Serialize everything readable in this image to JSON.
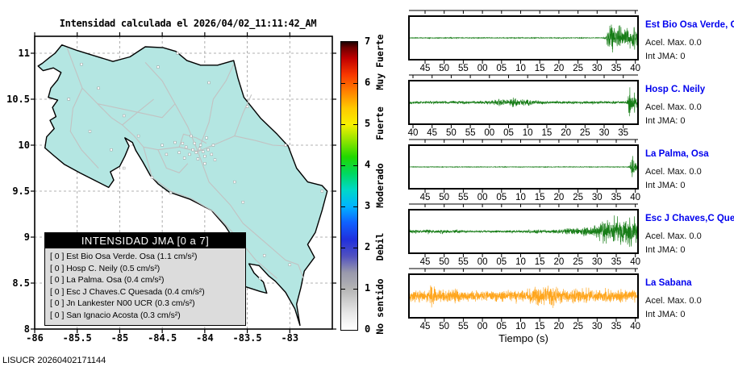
{
  "title": "Intensidad calculada el 2026/04/02_11:11:42_AM",
  "footer": "LISUCR 20260402171144",
  "map": {
    "x_ticks": [
      "-86",
      "-85.5",
      "-85",
      "-84.5",
      "-84",
      "-83.5",
      "-83"
    ],
    "y_ticks": [
      "11",
      "10.5",
      "10",
      "9.5",
      "9",
      "8.5",
      "8"
    ],
    "lon_min": -86,
    "lon_max": -82.5,
    "lat_min": 8,
    "lat_max": 11.184,
    "land_color": "#b4e6e2",
    "coast_color": "#000000",
    "road_color": "#c2c2c2",
    "grid_color": "#999999",
    "station_marker_color": "#ffffff",
    "legend": {
      "title": "INTENSIDAD JMA [0 a 7]",
      "rows": [
        "[ 0 ]  Est Bio Osa Verde. Osa (1.1 cm/s²)",
        "[ 0 ]  Hosp C. Neily (0.5 cm/s²)",
        "[ 0 ]  La Palma. Osa (0.4 cm/s²)",
        "[ 0 ]  Esc J Chaves.C Quesada (0.4 cm/s²)",
        "[ 0 ]  Jn Lankester N00 UCR (0.3 cm/s²)",
        "[ 0 ]  San Ignacio Acosta (0.3 cm/s²)"
      ]
    },
    "outline": [
      [
        -85.68,
        11.09
      ],
      [
        -85.76,
        11.0
      ],
      [
        -85.83,
        10.95
      ],
      [
        -85.91,
        10.89
      ],
      [
        -85.96,
        10.86
      ],
      [
        -85.9,
        10.81
      ],
      [
        -85.78,
        10.84
      ],
      [
        -85.69,
        10.79
      ],
      [
        -85.73,
        10.71
      ],
      [
        -85.81,
        10.62
      ],
      [
        -85.84,
        10.52
      ],
      [
        -85.73,
        10.49
      ],
      [
        -85.79,
        10.41
      ],
      [
        -85.75,
        10.31
      ],
      [
        -85.82,
        10.27
      ],
      [
        -85.77,
        10.18
      ],
      [
        -85.86,
        10.09
      ],
      [
        -85.88,
        9.97
      ],
      [
        -85.78,
        9.89
      ],
      [
        -85.65,
        9.79
      ],
      [
        -85.47,
        9.7
      ],
      [
        -85.28,
        9.61
      ],
      [
        -85.13,
        9.54
      ],
      [
        -85.07,
        9.62
      ],
      [
        -85.11,
        9.71
      ],
      [
        -85.0,
        9.77
      ],
      [
        -84.94,
        9.88
      ],
      [
        -84.89,
        9.99
      ],
      [
        -84.94,
        10.08
      ],
      [
        -84.85,
        10.03
      ],
      [
        -84.81,
        9.94
      ],
      [
        -84.73,
        9.82
      ],
      [
        -84.64,
        9.67
      ],
      [
        -84.55,
        9.58
      ],
      [
        -84.42,
        9.49
      ],
      [
        -84.17,
        9.41
      ],
      [
        -83.92,
        9.29
      ],
      [
        -83.76,
        9.12
      ],
      [
        -83.66,
        8.98
      ],
      [
        -83.73,
        8.78
      ],
      [
        -83.66,
        8.62
      ],
      [
        -83.52,
        8.46
      ],
      [
        -83.35,
        8.41
      ],
      [
        -83.27,
        8.39
      ],
      [
        -83.31,
        8.51
      ],
      [
        -83.42,
        8.61
      ],
      [
        -83.48,
        8.71
      ],
      [
        -83.36,
        8.69
      ],
      [
        -83.25,
        8.58
      ],
      [
        -83.17,
        8.52
      ],
      [
        -83.05,
        8.4
      ],
      [
        -82.94,
        8.22
      ],
      [
        -82.88,
        8.04
      ],
      [
        -82.92,
        8.27
      ],
      [
        -82.87,
        8.45
      ],
      [
        -82.83,
        8.63
      ],
      [
        -82.71,
        8.78
      ],
      [
        -82.79,
        8.92
      ],
      [
        -82.7,
        9.05
      ],
      [
        -82.62,
        9.29
      ],
      [
        -82.56,
        9.5
      ],
      [
        -82.62,
        9.56
      ],
      [
        -82.79,
        9.6
      ],
      [
        -82.92,
        9.75
      ],
      [
        -83.02,
        9.99
      ],
      [
        -83.15,
        10.12
      ],
      [
        -83.34,
        10.29
      ],
      [
        -83.54,
        10.52
      ],
      [
        -83.61,
        10.73
      ],
      [
        -83.66,
        10.92
      ],
      [
        -83.85,
        10.87
      ],
      [
        -84.05,
        10.87
      ],
      [
        -84.21,
        10.92
      ],
      [
        -84.34,
        11.02
      ],
      [
        -84.49,
        11.06
      ],
      [
        -84.7,
        11.07
      ],
      [
        -84.88,
        10.96
      ],
      [
        -85.08,
        10.91
      ],
      [
        -85.29,
        10.97
      ],
      [
        -85.5,
        11.03
      ],
      [
        -85.68,
        11.09
      ]
    ],
    "roads": [
      [
        [
          -85.62,
          11.06
        ],
        [
          -85.44,
          10.62
        ],
        [
          -85.26,
          10.45
        ],
        [
          -85.1,
          10.3
        ],
        [
          -84.97,
          10.22
        ],
        [
          -84.83,
          10.1
        ],
        [
          -84.72,
          9.98
        ],
        [
          -84.55,
          9.95
        ],
        [
          -84.3,
          9.98
        ],
        [
          -84.08,
          9.93
        ]
      ],
      [
        [
          -84.08,
          9.93
        ],
        [
          -83.9,
          10.0
        ],
        [
          -83.65,
          10.1
        ],
        [
          -83.4,
          10.05
        ],
        [
          -83.2,
          10.0
        ],
        [
          -83.03,
          9.99
        ]
      ],
      [
        [
          -84.08,
          9.93
        ],
        [
          -83.95,
          9.6
        ],
        [
          -83.7,
          9.35
        ],
        [
          -83.55,
          9.15
        ],
        [
          -83.3,
          8.95
        ],
        [
          -83.05,
          8.75
        ],
        [
          -82.9,
          8.7
        ],
        [
          -82.84,
          8.55
        ]
      ],
      [
        [
          -84.72,
          9.98
        ],
        [
          -84.62,
          9.65
        ],
        [
          -84.4,
          9.5
        ],
        [
          -84.16,
          9.42
        ],
        [
          -83.9,
          9.28
        ],
        [
          -83.62,
          9.0
        ],
        [
          -83.4,
          8.75
        ],
        [
          -83.15,
          8.55
        ]
      ],
      [
        [
          -84.08,
          9.93
        ],
        [
          -84.2,
          10.2
        ],
        [
          -84.35,
          10.45
        ],
        [
          -84.5,
          10.7
        ],
        [
          -84.7,
          10.9
        ]
      ],
      [
        [
          -84.08,
          9.93
        ],
        [
          -83.95,
          10.25
        ],
        [
          -83.9,
          10.5
        ],
        [
          -83.75,
          10.7
        ],
        [
          -83.66,
          10.88
        ]
      ],
      [
        [
          -85.44,
          10.62
        ],
        [
          -85.55,
          10.4
        ],
        [
          -85.58,
          10.15
        ],
        [
          -85.45,
          9.95
        ],
        [
          -85.25,
          9.75
        ]
      ],
      [
        [
          -85.26,
          10.45
        ],
        [
          -85.0,
          10.4
        ],
        [
          -84.75,
          10.35
        ],
        [
          -84.5,
          10.3
        ],
        [
          -84.35,
          10.45
        ]
      ],
      [
        [
          -84.3,
          9.98
        ],
        [
          -84.25,
          10.12
        ],
        [
          -84.1,
          10.08
        ],
        [
          -83.98,
          10.02
        ]
      ],
      [
        [
          -84.55,
          9.95
        ],
        [
          -84.45,
          9.75
        ],
        [
          -84.3,
          9.7
        ],
        [
          -84.2,
          9.8
        ]
      ],
      [
        [
          -83.65,
          10.1
        ],
        [
          -83.55,
          10.35
        ],
        [
          -83.45,
          10.55
        ]
      ],
      [
        [
          -84.97,
          10.22
        ],
        [
          -84.8,
          10.35
        ],
        [
          -84.6,
          10.5
        ]
      ]
    ],
    "stations": [
      [
        -84.02,
        9.93
      ],
      [
        -84.06,
        9.96
      ],
      [
        -84.1,
        9.92
      ],
      [
        -84.14,
        9.95
      ],
      [
        -84.18,
        9.9
      ],
      [
        -84.0,
        9.88
      ],
      [
        -83.96,
        9.95
      ],
      [
        -84.05,
        10.0
      ],
      [
        -84.12,
        10.02
      ],
      [
        -84.22,
        9.98
      ],
      [
        -84.26,
        10.02
      ],
      [
        -84.08,
        9.85
      ],
      [
        -83.92,
        9.9
      ],
      [
        -83.88,
        9.84
      ],
      [
        -84.3,
        9.92
      ],
      [
        -84.35,
        10.03
      ],
      [
        -83.98,
        10.08
      ],
      [
        -84.16,
        10.1
      ],
      [
        -84.45,
        9.9
      ],
      [
        -84.5,
        10.0
      ],
      [
        -83.9,
        10.0
      ],
      [
        -84.0,
        9.8
      ],
      [
        -84.24,
        9.86
      ],
      [
        -85.45,
        10.88
      ],
      [
        -85.25,
        10.62
      ],
      [
        -84.95,
        10.32
      ],
      [
        -84.55,
        10.85
      ],
      [
        -84.32,
        11.0
      ],
      [
        -83.95,
        10.68
      ],
      [
        -83.5,
        10.42
      ],
      [
        -83.05,
        10.0
      ],
      [
        -83.65,
        9.6
      ],
      [
        -83.55,
        9.38
      ],
      [
        -83.3,
        8.8
      ],
      [
        -83.0,
        8.7
      ],
      [
        -83.35,
        8.55
      ],
      [
        -84.4,
        9.48
      ],
      [
        -84.62,
        9.65
      ],
      [
        -85.1,
        9.95
      ],
      [
        -85.35,
        10.15
      ],
      [
        -84.78,
        10.1
      ],
      [
        -82.62,
        9.5
      ],
      [
        -83.72,
        8.95
      ],
      [
        -84.95,
        9.75
      ],
      [
        -85.6,
        10.5
      ]
    ]
  },
  "colorbar": {
    "numbers": [
      "0",
      "1",
      "2",
      "3",
      "4",
      "5",
      "6",
      "7"
    ],
    "words": [
      {
        "text": "Muy Fuerte",
        "center_v": 6.5
      },
      {
        "text": "Fuerte",
        "center_v": 5.0
      },
      {
        "text": "Moderado",
        "center_v": 3.5
      },
      {
        "text": "Debil",
        "center_v": 2.0
      },
      {
        "text": "No sentido",
        "center_v": 0.55
      }
    ],
    "stops": [
      [
        0,
        "#ffffff"
      ],
      [
        0.4,
        "#e8e8e8"
      ],
      [
        1,
        "#b4b4b4"
      ],
      [
        1.4,
        "#9898ac"
      ],
      [
        1.8,
        "#5050c0"
      ],
      [
        2.2,
        "#2030dd"
      ],
      [
        2.6,
        "#1060ff"
      ],
      [
        3,
        "#00b4ff"
      ],
      [
        3.4,
        "#00d8c8"
      ],
      [
        3.8,
        "#00d860"
      ],
      [
        4.2,
        "#20d800"
      ],
      [
        4.6,
        "#90e400"
      ],
      [
        5,
        "#f8f000"
      ],
      [
        5.4,
        "#ffc800"
      ],
      [
        5.8,
        "#ff8000"
      ],
      [
        6.2,
        "#f83800"
      ],
      [
        6.6,
        "#c00000"
      ],
      [
        6.85,
        "#700000"
      ],
      [
        7,
        "#1c0000"
      ]
    ]
  },
  "chart_data": {
    "type": "seismogram-panels",
    "time_axis_label": "Tiempo (s)",
    "panels": [
      {
        "station": "Est Bio Osa Verde, Osa",
        "acel": "Acel. Max. 0.0",
        "jma": "Int JMA: 0",
        "color": "#177d17",
        "seed": 11,
        "n": 1400,
        "tick_offset": 20,
        "ticks": [
          "45",
          "50",
          "55",
          "00",
          "05",
          "10",
          "15",
          "20",
          "25",
          "30",
          "35",
          "40"
        ],
        "envelope": [
          [
            0,
            0.7
          ],
          [
            0.85,
            0.7
          ],
          [
            0.862,
            3
          ],
          [
            0.875,
            24
          ],
          [
            0.89,
            26
          ],
          [
            0.9,
            14
          ],
          [
            0.915,
            20
          ],
          [
            0.93,
            24
          ],
          [
            0.945,
            15
          ],
          [
            0.96,
            21
          ],
          [
            0.975,
            14
          ],
          [
            0.988,
            22
          ],
          [
            1,
            12
          ]
        ]
      },
      {
        "station": "Hosp C. Neily",
        "acel": "Acel. Max. 0.0",
        "jma": "Int JMA: 0",
        "color": "#177d17",
        "seed": 22,
        "n": 1400,
        "tick_offset": 5,
        "ticks": [
          "40",
          "45",
          "50",
          "55",
          "00",
          "05",
          "10",
          "15",
          "20",
          "25",
          "30",
          "35"
        ],
        "envelope": [
          [
            0,
            2.2
          ],
          [
            0.3,
            2.4
          ],
          [
            0.36,
            3.5
          ],
          [
            0.4,
            6
          ],
          [
            0.43,
            4
          ],
          [
            0.455,
            8
          ],
          [
            0.48,
            5
          ],
          [
            0.51,
            6.5
          ],
          [
            0.54,
            4
          ],
          [
            0.57,
            3
          ],
          [
            0.62,
            2.5
          ],
          [
            0.8,
            2.2
          ],
          [
            0.94,
            2.2
          ],
          [
            0.955,
            3
          ],
          [
            0.968,
            26
          ],
          [
            0.978,
            12
          ],
          [
            0.988,
            20
          ],
          [
            1,
            8
          ]
        ]
      },
      {
        "station": "La Palma, Osa",
        "acel": "Acel. Max. 0.0",
        "jma": "Int JMA: 0",
        "color": "#177d17",
        "seed": 33,
        "n": 1400,
        "tick_offset": 20,
        "ticks": [
          "45",
          "50",
          "55",
          "00",
          "05",
          "10",
          "15",
          "20",
          "25",
          "30",
          "35",
          "40"
        ],
        "envelope": [
          [
            0,
            0.55
          ],
          [
            0.955,
            0.55
          ],
          [
            0.968,
            2
          ],
          [
            0.978,
            24
          ],
          [
            0.988,
            12
          ],
          [
            1,
            5
          ]
        ]
      },
      {
        "station": "Esc J Chaves,C Quesada",
        "acel": "Acel. Max. 0.0",
        "jma": "Int JMA: 0",
        "color": "#177d17",
        "seed": 44,
        "n": 1400,
        "tick_offset": 20,
        "ticks": [
          "45",
          "50",
          "55",
          "00",
          "05",
          "10",
          "15",
          "20",
          "25",
          "30",
          "35",
          "40"
        ],
        "envelope": [
          [
            0,
            3
          ],
          [
            0.03,
            4.5
          ],
          [
            0.05,
            2.5
          ],
          [
            0.08,
            4.2
          ],
          [
            0.11,
            2.5
          ],
          [
            0.14,
            4
          ],
          [
            0.17,
            2.2
          ],
          [
            0.21,
            3.5
          ],
          [
            0.24,
            1.8
          ],
          [
            0.3,
            1.6
          ],
          [
            0.4,
            1.7
          ],
          [
            0.5,
            2.2
          ],
          [
            0.56,
            3
          ],
          [
            0.6,
            2.5
          ],
          [
            0.64,
            3.5
          ],
          [
            0.68,
            5
          ],
          [
            0.71,
            6.5
          ],
          [
            0.74,
            5
          ],
          [
            0.77,
            8
          ],
          [
            0.8,
            7
          ],
          [
            0.83,
            14
          ],
          [
            0.86,
            24
          ],
          [
            0.88,
            18
          ],
          [
            0.9,
            26
          ],
          [
            0.93,
            22
          ],
          [
            0.96,
            27
          ],
          [
            0.98,
            24
          ],
          [
            1,
            20
          ]
        ]
      },
      {
        "station": "La Sabana",
        "acel": "Acel. Max. 0.0",
        "jma": "Int JMA: 0",
        "color": "#ffa61e",
        "seed": 55,
        "n": 1600,
        "tick_offset": 20,
        "ticks": [
          "45",
          "50",
          "55",
          "00",
          "05",
          "10",
          "15",
          "20",
          "25",
          "30",
          "35",
          "40"
        ],
        "envelope": [
          [
            0,
            9
          ],
          [
            0.04,
            11
          ],
          [
            0.075,
            9
          ],
          [
            0.095,
            23
          ],
          [
            0.115,
            12
          ],
          [
            0.15,
            9
          ],
          [
            0.2,
            11
          ],
          [
            0.24,
            8
          ],
          [
            0.28,
            10
          ],
          [
            0.33,
            8.5
          ],
          [
            0.38,
            10
          ],
          [
            0.43,
            9
          ],
          [
            0.47,
            11
          ],
          [
            0.5,
            9
          ],
          [
            0.54,
            13
          ],
          [
            0.57,
            17
          ],
          [
            0.595,
            13
          ],
          [
            0.615,
            19
          ],
          [
            0.64,
            14
          ],
          [
            0.66,
            11
          ],
          [
            0.69,
            13
          ],
          [
            0.72,
            15
          ],
          [
            0.75,
            11
          ],
          [
            0.78,
            13
          ],
          [
            0.81,
            10
          ],
          [
            0.85,
            12
          ],
          [
            0.89,
            10
          ],
          [
            0.93,
            11
          ],
          [
            0.97,
            9
          ],
          [
            1,
            10
          ]
        ]
      }
    ]
  }
}
